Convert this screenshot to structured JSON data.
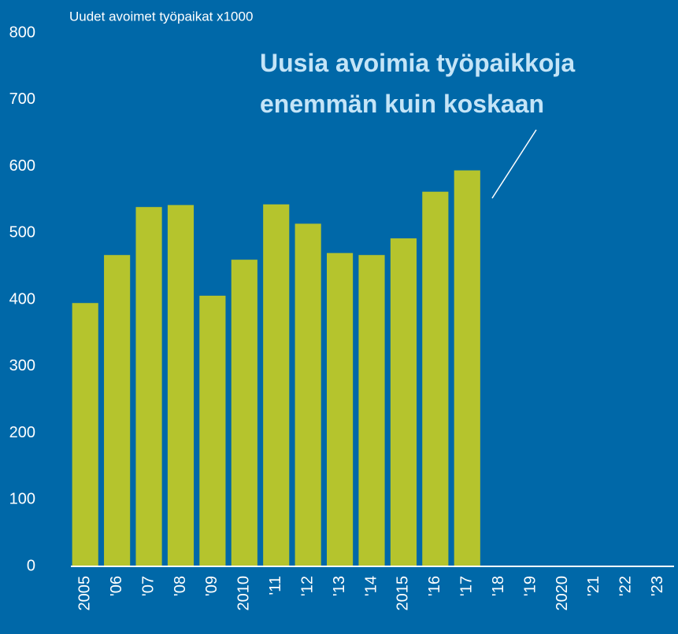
{
  "chart_data": {
    "type": "bar",
    "y_axis_label": "Uudet avoimet työpaikat x1000",
    "annotation": [
      "Uusia avoimia työpaikkoja",
      "enemmän kuin koskaan"
    ],
    "categories": [
      "2005",
      "'06",
      "'07",
      "'08",
      "'09",
      "2010",
      "'11",
      "'12",
      "'13",
      "'14",
      "2015",
      "'16",
      "'17",
      "'18",
      "'19",
      "2020",
      "'21",
      "'22",
      "'23"
    ],
    "values": [
      395,
      467,
      539,
      542,
      406,
      460,
      543,
      514,
      470,
      467,
      492,
      562,
      594,
      null,
      null,
      null,
      null,
      null,
      null
    ],
    "color": "#b5c42d",
    "ylim": [
      0,
      800
    ],
    "yticks": [
      0,
      100,
      200,
      300,
      400,
      500,
      600,
      700,
      800
    ],
    "grid": false
  }
}
